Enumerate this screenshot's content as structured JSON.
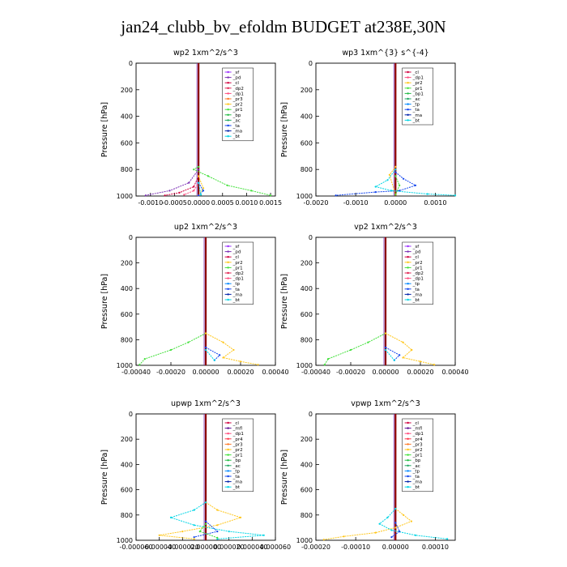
{
  "figure": {
    "title": "jan24_clubb_bv_efoldm  BUDGET at238E,30N"
  },
  "chart_data": [
    {
      "type": "line",
      "title": "wp2  1xm^2/s^3",
      "ylabel": "Pressure [hPa]",
      "xlim": [
        -0.0013,
        0.0016
      ],
      "xticks": [
        "-0.0010",
        "-0.0005",
        "0.0000",
        "0.0005",
        "0.0010",
        "0.0015"
      ],
      "xtick_values": [
        -0.001,
        -0.0005,
        0,
        0.0005,
        0.001,
        0.0015
      ],
      "ylim": [
        1000,
        0
      ],
      "yticks": [
        0,
        200,
        400,
        600,
        800,
        1000
      ],
      "legend": [
        "_sf",
        "_pd",
        "_cl",
        "_dp2",
        "_dp1",
        "_pr3",
        "_pr2",
        "_pr1",
        "_bp",
        "_ac",
        "_ta",
        "_ma",
        "_bt"
      ],
      "series": [
        {
          "name": "_pd",
          "color": "#7b2fb5",
          "points": [
            [
              0,
              800
            ],
            [
              -0.0002,
              900
            ],
            [
              -0.0006,
              960
            ],
            [
              -0.0011,
              995
            ]
          ]
        },
        {
          "name": "_cl",
          "color": "#d1003f",
          "points": [
            [
              0,
              850
            ],
            [
              -0.0001,
              930
            ],
            [
              -0.0004,
              975
            ],
            [
              -0.0007,
              995
            ]
          ]
        },
        {
          "name": "_dp1",
          "color": "#ff4b7d",
          "points": [
            [
              0,
              900
            ],
            [
              -0.0001,
              960
            ],
            [
              -0.0003,
              990
            ]
          ]
        },
        {
          "name": "_pr2",
          "color": "#ffc61a",
          "points": [
            [
              0,
              850
            ],
            [
              0.0001,
              940
            ],
            [
              0,
              995
            ]
          ]
        },
        {
          "name": "_pr1",
          "color": "#42e03a",
          "points": [
            [
              0,
              780
            ],
            [
              -0.0001,
              800
            ],
            [
              0.0002,
              850
            ],
            [
              0.0006,
              920
            ],
            [
              0.0011,
              960
            ],
            [
              0.0015,
              995
            ]
          ]
        },
        {
          "name": "_ta",
          "color": "#1144ee",
          "points": [
            [
              0,
              900
            ],
            [
              0.0001,
              960
            ],
            [
              0,
              995
            ]
          ]
        },
        {
          "name": "_bt",
          "color": "#00d5e5",
          "points": [
            [
              0,
              900
            ],
            [
              5e-05,
              990
            ]
          ]
        }
      ]
    },
    {
      "type": "line",
      "title": "wp3  1xm^{3} s^{-4}",
      "ylabel": "Pressure [hPa]",
      "xlim": [
        -0.002,
        0.0015
      ],
      "xticks": [
        "-0.0020",
        "-0.0010",
        "0.0000",
        "0.0010"
      ],
      "xtick_values": [
        -0.002,
        -0.001,
        0,
        0.001
      ],
      "ylim": [
        1000,
        0
      ],
      "yticks": [
        0,
        200,
        400,
        600,
        800,
        1000
      ],
      "legend": [
        "_cl",
        "_dp1",
        "_pr2",
        "_pr1",
        "_bp1",
        "_ac",
        "_tp",
        "_ta",
        "_ma",
        "_bt"
      ],
      "series": [
        {
          "name": "_ta",
          "color": "#1144ee",
          "points": [
            [
              0,
              820
            ],
            [
              0.0002,
              870
            ],
            [
              0.0005,
              920
            ],
            [
              0.0001,
              960
            ],
            [
              -0.0005,
              970
            ],
            [
              -0.0015,
              995
            ]
          ]
        },
        {
          "name": "_tp",
          "color": "#00d5e5",
          "points": [
            [
              0,
              800
            ],
            [
              -0.0002,
              880
            ],
            [
              -0.0005,
              930
            ],
            [
              -0.0001,
              960
            ],
            [
              0.0008,
              985
            ],
            [
              0.0015,
              995
            ]
          ]
        },
        {
          "name": "_pr1",
          "color": "#ffc61a",
          "points": [
            [
              0,
              780
            ],
            [
              -0.00015,
              840
            ],
            [
              0,
              990
            ]
          ]
        },
        {
          "name": "_pr2",
          "color": "#42e03a",
          "points": [
            [
              0,
              850
            ],
            [
              0.0001,
              920
            ],
            [
              0,
              990
            ]
          ]
        }
      ]
    },
    {
      "type": "line",
      "title": "up2  1xm^2/s^3",
      "ylabel": "Pressure [hPa]",
      "xlim": [
        -0.0004,
        0.0004
      ],
      "xticks": [
        "-0.00040",
        "-0.00020",
        "0.00000",
        "0.00020",
        "0.00040"
      ],
      "xtick_values": [
        -0.0004,
        -0.0002,
        0,
        0.0002,
        0.0004
      ],
      "ylim": [
        1000,
        0
      ],
      "yticks": [
        0,
        200,
        400,
        600,
        800,
        1000
      ],
      "legend": [
        "_sf",
        "_pd",
        "_cl",
        "_pr2",
        "_pr1",
        "_dp2",
        "_dp1",
        "_tp",
        "_ta",
        "_ma",
        "_bt"
      ],
      "series": [
        {
          "name": "_pr1",
          "color": "#42e03a",
          "points": [
            [
              0,
              750
            ],
            [
              -0.0001,
              820
            ],
            [
              -0.0002,
              880
            ],
            [
              -0.00035,
              950
            ],
            [
              -0.00038,
              995
            ]
          ]
        },
        {
          "name": "_pr2",
          "color": "#ffc61a",
          "points": [
            [
              0,
              750
            ],
            [
              0.0001,
              820
            ],
            [
              0.00016,
              880
            ],
            [
              0.0001,
              940
            ],
            [
              0.0002,
              970
            ],
            [
              0.0003,
              995
            ]
          ]
        },
        {
          "name": "_ta",
          "color": "#1144ee",
          "points": [
            [
              0,
              860
            ],
            [
              8e-05,
              920
            ],
            [
              5e-05,
              960
            ]
          ]
        },
        {
          "name": "_bt",
          "color": "#00d5e5",
          "points": [
            [
              0,
              880
            ],
            [
              5e-05,
              960
            ]
          ]
        }
      ]
    },
    {
      "type": "line",
      "title": "vp2  1xm^2/s^3",
      "ylabel": "Pressure [hPa]",
      "xlim": [
        -0.0004,
        0.0004
      ],
      "xticks": [
        "-0.00040",
        "-0.00020",
        "0.00000",
        "0.00020",
        "0.00040"
      ],
      "xtick_values": [
        -0.0004,
        -0.0002,
        0,
        0.0002,
        0.0004
      ],
      "ylim": [
        1000,
        0
      ],
      "yticks": [
        0,
        200,
        400,
        600,
        800,
        1000
      ],
      "legend": [
        "_sf",
        "_pd",
        "_cl",
        "_pr2",
        "_pr1",
        "_dp2",
        "_dp1",
        "_tp",
        "_ta",
        "_ma",
        "_bt"
      ],
      "series": [
        {
          "name": "_pr1",
          "color": "#42e03a",
          "points": [
            [
              0,
              750
            ],
            [
              -0.0001,
              820
            ],
            [
              -0.0002,
              880
            ],
            [
              -0.00033,
              950
            ],
            [
              -0.00035,
              995
            ]
          ]
        },
        {
          "name": "_pr2",
          "color": "#ffc61a",
          "points": [
            [
              0,
              750
            ],
            [
              0.0001,
              820
            ],
            [
              0.00015,
              880
            ],
            [
              0.0001,
              940
            ],
            [
              0.0002,
              970
            ],
            [
              0.00028,
              995
            ]
          ]
        },
        {
          "name": "_ta",
          "color": "#1144ee",
          "points": [
            [
              0,
              860
            ],
            [
              8e-05,
              920
            ],
            [
              5e-05,
              960
            ]
          ]
        },
        {
          "name": "_bt",
          "color": "#00d5e5",
          "points": [
            [
              0,
              880
            ],
            [
              5e-05,
              960
            ]
          ]
        }
      ]
    },
    {
      "type": "line",
      "title": "upwp  1xm^2/s^3",
      "ylabel": "Pressure [hPa]",
      "xlim": [
        -6e-05,
        6e-05
      ],
      "xticks": [
        "-0.000060",
        "-0.000040",
        "-0.000020",
        "0.000000",
        "0.000020",
        "0.000040",
        "0.000060"
      ],
      "xtick_values": [
        -6e-05,
        -4e-05,
        -2e-05,
        0,
        2e-05,
        4e-05,
        6e-05
      ],
      "ylim": [
        1000,
        0
      ],
      "yticks": [
        0,
        200,
        400,
        600,
        800,
        1000
      ],
      "legend": [
        "_cl",
        "_mfl",
        "_dp1",
        "_pr4",
        "_pr3",
        "_pr2",
        "_pr1",
        "_bp",
        "_ac",
        "_tp",
        "_ta",
        "_ma",
        "_bt"
      ],
      "series": [
        {
          "name": "_pr1",
          "color": "#ffc61a",
          "points": [
            [
              0,
              700
            ],
            [
              1e-05,
              760
            ],
            [
              3e-05,
              820
            ],
            [
              1e-05,
              880
            ],
            [
              -2e-05,
              930
            ],
            [
              -4e-05,
              960
            ],
            [
              -1e-05,
              990
            ]
          ]
        },
        {
          "name": "_tp",
          "color": "#00d5e5",
          "points": [
            [
              0,
              700
            ],
            [
              -1e-05,
              760
            ],
            [
              -3e-05,
              820
            ],
            [
              -1e-05,
              880
            ],
            [
              2e-05,
              930
            ],
            [
              5e-05,
              960
            ],
            [
              1e-05,
              990
            ]
          ]
        },
        {
          "name": "_ta",
          "color": "#1144ee",
          "points": [
            [
              0,
              850
            ],
            [
              1e-05,
              930
            ],
            [
              -1e-05,
              975
            ]
          ]
        },
        {
          "name": "_bp",
          "color": "#42e03a",
          "points": [
            [
              0,
              870
            ],
            [
              -5e-06,
              930
            ],
            [
              1e-05,
              980
            ]
          ]
        }
      ]
    },
    {
      "type": "line",
      "title": "vpwp  1xm^2/s^3",
      "ylabel": "Pressure [hPa]",
      "xlim": [
        -0.0002,
        0.00015
      ],
      "xticks": [
        "-0.00020",
        "-0.00010",
        "0.00000",
        "0.00010"
      ],
      "xtick_values": [
        -0.0002,
        -0.0001,
        0,
        0.0001
      ],
      "ylim": [
        1000,
        0
      ],
      "yticks": [
        0,
        200,
        400,
        600,
        800,
        1000
      ],
      "legend": [
        "_cl",
        "_mfl",
        "_dp1",
        "_pr4",
        "_pr3",
        "_pr2",
        "_pr1",
        "_bp",
        "_ac",
        "_tp",
        "_ta",
        "_ma",
        "_bt"
      ],
      "series": [
        {
          "name": "_pr1",
          "color": "#ffc61a",
          "points": [
            [
              0,
              750
            ],
            [
              2e-05,
              800
            ],
            [
              4e-05,
              850
            ],
            [
              0,
              900
            ],
            [
              -5e-05,
              940
            ],
            [
              -0.00013,
              970
            ],
            [
              -0.00018,
              995
            ]
          ]
        },
        {
          "name": "_tp",
          "color": "#00d5e5",
          "points": [
            [
              0,
              750
            ],
            [
              -2e-05,
              820
            ],
            [
              -4e-05,
              870
            ],
            [
              -1e-05,
              920
            ],
            [
              5e-05,
              960
            ],
            [
              0.00013,
              990
            ]
          ]
        },
        {
          "name": "_ta",
          "color": "#1144ee",
          "points": [
            [
              0,
              860
            ],
            [
              1e-05,
              930
            ],
            [
              -1e-05,
              975
            ]
          ]
        }
      ]
    }
  ]
}
